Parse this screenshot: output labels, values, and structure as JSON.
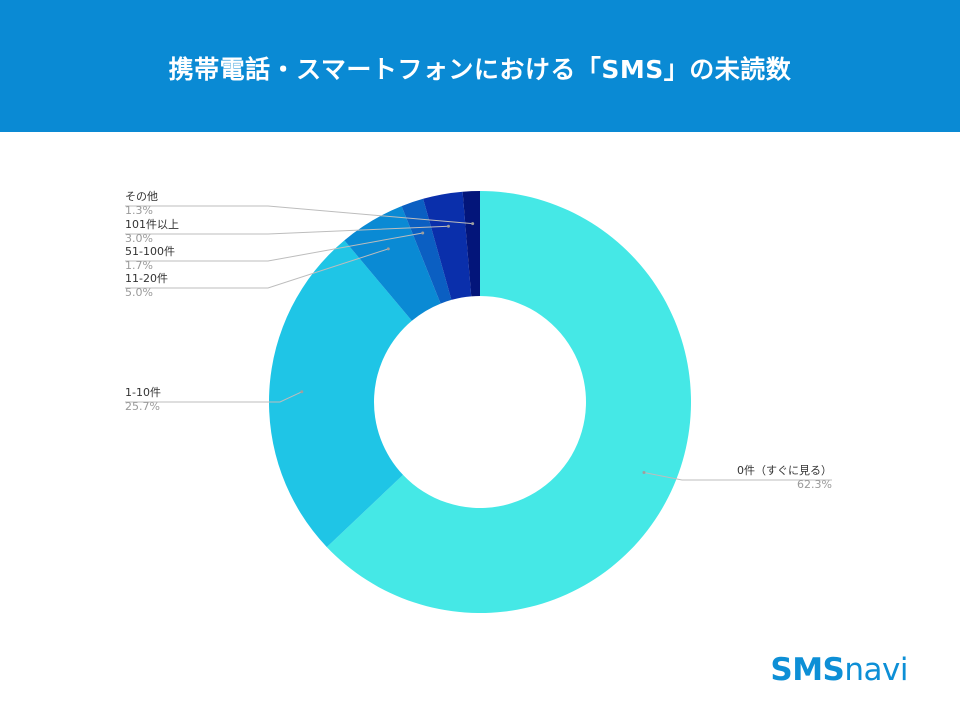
{
  "header": {
    "title": "携帯電話・スマートフォンにおける「SMS」の未読数",
    "background": "#0a8ad4"
  },
  "chart_data": {
    "type": "pie",
    "donut": true,
    "title": "携帯電話・スマートフォンにおける「SMS」の未読数",
    "slices": [
      {
        "label": "0件（すぐに見る）",
        "value": 62.3,
        "value_label": "62.3%",
        "color": "#45e8e6"
      },
      {
        "label": "1-10件",
        "value": 25.7,
        "value_label": "25.7%",
        "color": "#1fc5e6"
      },
      {
        "label": "11-20件",
        "value": 5.0,
        "value_label": "5.0%",
        "color": "#0a8ad4"
      },
      {
        "label": "51-100件",
        "value": 1.7,
        "value_label": "1.7%",
        "color": "#0b5fc2"
      },
      {
        "label": "101件以上",
        "value": 3.0,
        "value_label": "3.0%",
        "color": "#0a2fab"
      },
      {
        "label": "その他",
        "value": 1.3,
        "value_label": "1.3%",
        "color": "#03157a"
      }
    ],
    "start_angle_deg": 0,
    "direction": "clockwise"
  },
  "logo": {
    "text_bold": "SMS",
    "text_light": "navi",
    "color": "#0d8fd6"
  }
}
